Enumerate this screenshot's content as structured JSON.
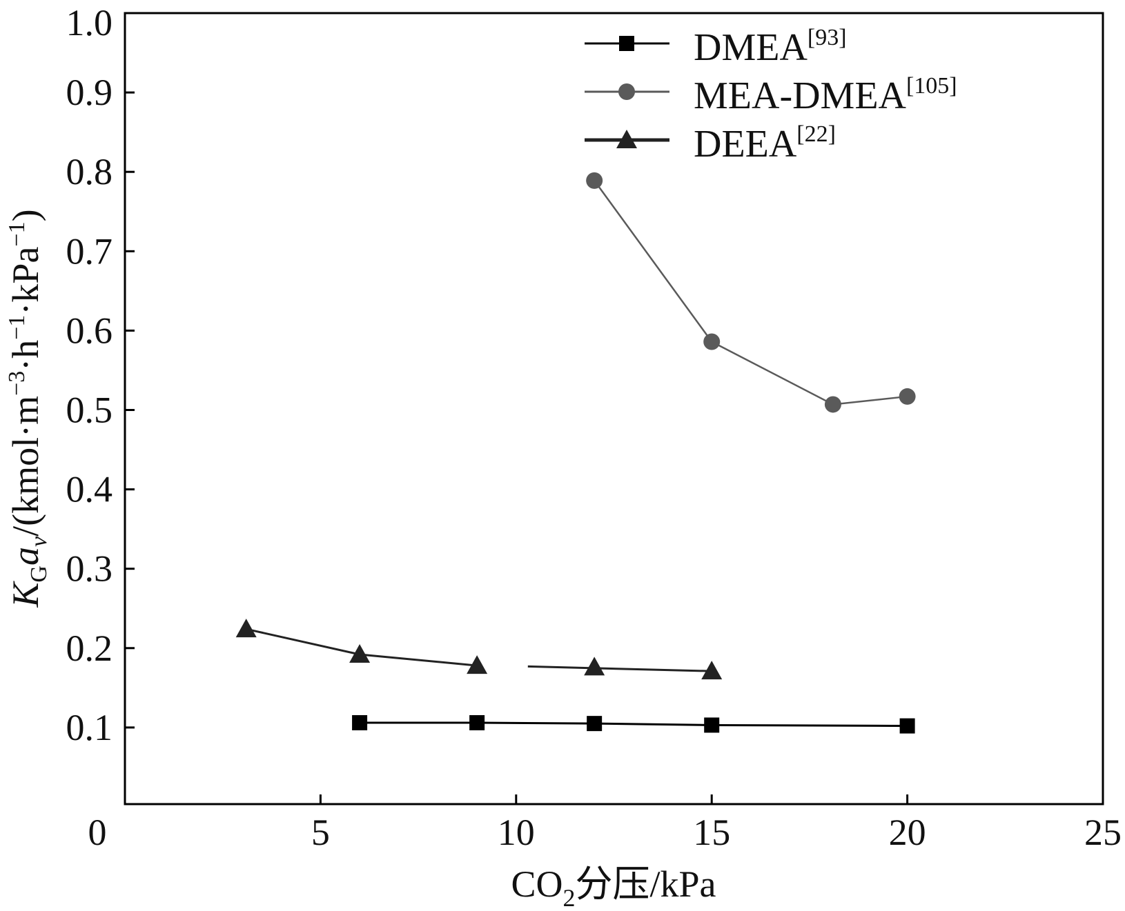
{
  "chart_data": {
    "type": "line",
    "title": "",
    "xlabel": "CO2分压/kPa",
    "xlabel_parts": {
      "pre": "CO",
      "sub": "2",
      "post": "分压/kPa"
    },
    "ylabel": "KGav/(kmol·m−3·h−1·kPa−1)",
    "ylabel_parts": {
      "k": "K",
      "k_sub": "G",
      "a": "a",
      "a_sub": "v",
      "unit": "/(kmol·m",
      "e1": "−3",
      "u2": "·h",
      "e2": "−1",
      "u3": "·kPa",
      "e3": "−1",
      "close": ")"
    },
    "xlim": [
      0,
      25
    ],
    "ylim": [
      0,
      1.0
    ],
    "xticks": [
      "0",
      "5",
      "10",
      "15",
      "20",
      "25"
    ],
    "xtick_values": [
      0,
      5,
      10,
      15,
      20,
      25
    ],
    "yticks": [
      "0.1",
      "0.2",
      "0.3",
      "0.4",
      "0.5",
      "0.6",
      "0.7",
      "0.8",
      "0.9",
      "1.0"
    ],
    "ytick_values": [
      0.1,
      0.2,
      0.3,
      0.4,
      0.5,
      0.6,
      0.7,
      0.8,
      0.9,
      1.0
    ],
    "grid": false,
    "legend_position": "top-right",
    "series": [
      {
        "name": "DMEA",
        "ref": "[93]",
        "marker": "square",
        "color": "#000000",
        "x": [
          6,
          9,
          12,
          15,
          20
        ],
        "y": [
          0.106,
          0.106,
          0.105,
          0.103,
          0.102
        ]
      },
      {
        "name": "MEA-DMEA",
        "ref": "[105]",
        "marker": "circle",
        "color": "#5a5a5a",
        "x": [
          12,
          15,
          18.1,
          20
        ],
        "y": [
          0.789,
          0.586,
          0.507,
          0.517
        ]
      },
      {
        "name": "DEEA",
        "ref": "[22]",
        "marker": "triangle",
        "color": "#222222",
        "x": [
          3.1,
          6,
          9,
          12,
          15
        ],
        "y": [
          0.224,
          0.192,
          0.178,
          0.176,
          0.171
        ]
      }
    ]
  }
}
